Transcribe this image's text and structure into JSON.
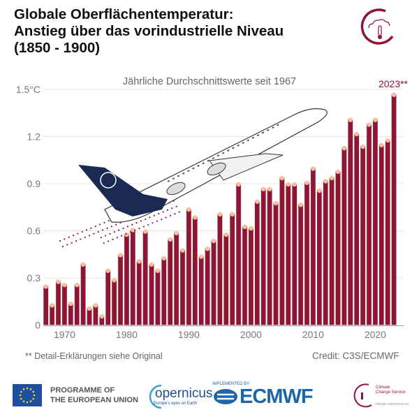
{
  "title": "Globale Oberflächentemperatur:\nAnstieg über das vorindustrielle Niveau\n(1850 - 1900)",
  "footnote": "** Detail-Erklärungen siehe Original",
  "credit": "Credit: C3S/ECMWF",
  "footer": {
    "eu_label_1": "PROGRAMME OF",
    "eu_label_2": "THE EUROPEAN UNION",
    "copernicus": "opernicus",
    "copernicus_tagline": "Europe's eyes on Earth",
    "implemented_by": "IMPLEMENTED BY",
    "ecmwf": "ECMWF",
    "c3s_1": "Climate",
    "c3s_2": "Change Service",
    "c3s_url": "climate.copernicus.eu"
  },
  "colors": {
    "bar": "#8e1533",
    "dots": "#f6bfa0",
    "grid": "#e4e4e4",
    "plane_tail": "#1b2a52"
  },
  "chart_data": {
    "type": "bar",
    "subtitle": "Jährliche Durchschnittswerte seit 1967",
    "ylim": [
      0,
      1.5
    ],
    "y_ticks": [
      0,
      0.3,
      0.6,
      0.9,
      1.2,
      1.5
    ],
    "y_tick_labels": [
      "0",
      "0.3",
      "0.6",
      "0.9",
      "1.2",
      "1.5°C"
    ],
    "x_ticks": [
      1970,
      1980,
      1990,
      2000,
      2010,
      2020
    ],
    "grid": true,
    "highlight_label": "2023**",
    "categories": [
      1967,
      1968,
      1969,
      1970,
      1971,
      1972,
      1973,
      1974,
      1975,
      1976,
      1977,
      1978,
      1979,
      1980,
      1981,
      1982,
      1983,
      1984,
      1985,
      1986,
      1987,
      1988,
      1989,
      1990,
      1991,
      1992,
      1993,
      1994,
      1995,
      1996,
      1997,
      1998,
      1999,
      2000,
      2001,
      2002,
      2003,
      2004,
      2005,
      2006,
      2007,
      2008,
      2009,
      2010,
      2011,
      2012,
      2013,
      2014,
      2015,
      2016,
      2017,
      2018,
      2019,
      2020,
      2021,
      2022,
      2023
    ],
    "values": [
      0.25,
      0.13,
      0.28,
      0.26,
      0.14,
      0.26,
      0.39,
      0.11,
      0.13,
      0.06,
      0.35,
      0.29,
      0.45,
      0.58,
      0.61,
      0.41,
      0.6,
      0.39,
      0.35,
      0.43,
      0.55,
      0.59,
      0.48,
      0.74,
      0.69,
      0.44,
      0.49,
      0.54,
      0.71,
      0.58,
      0.71,
      0.9,
      0.63,
      0.62,
      0.79,
      0.87,
      0.87,
      0.78,
      0.94,
      0.9,
      0.9,
      0.77,
      0.91,
      1.0,
      0.86,
      0.92,
      0.94,
      0.98,
      1.13,
      1.31,
      1.22,
      1.14,
      1.28,
      1.31,
      1.15,
      1.18,
      1.47
    ]
  }
}
